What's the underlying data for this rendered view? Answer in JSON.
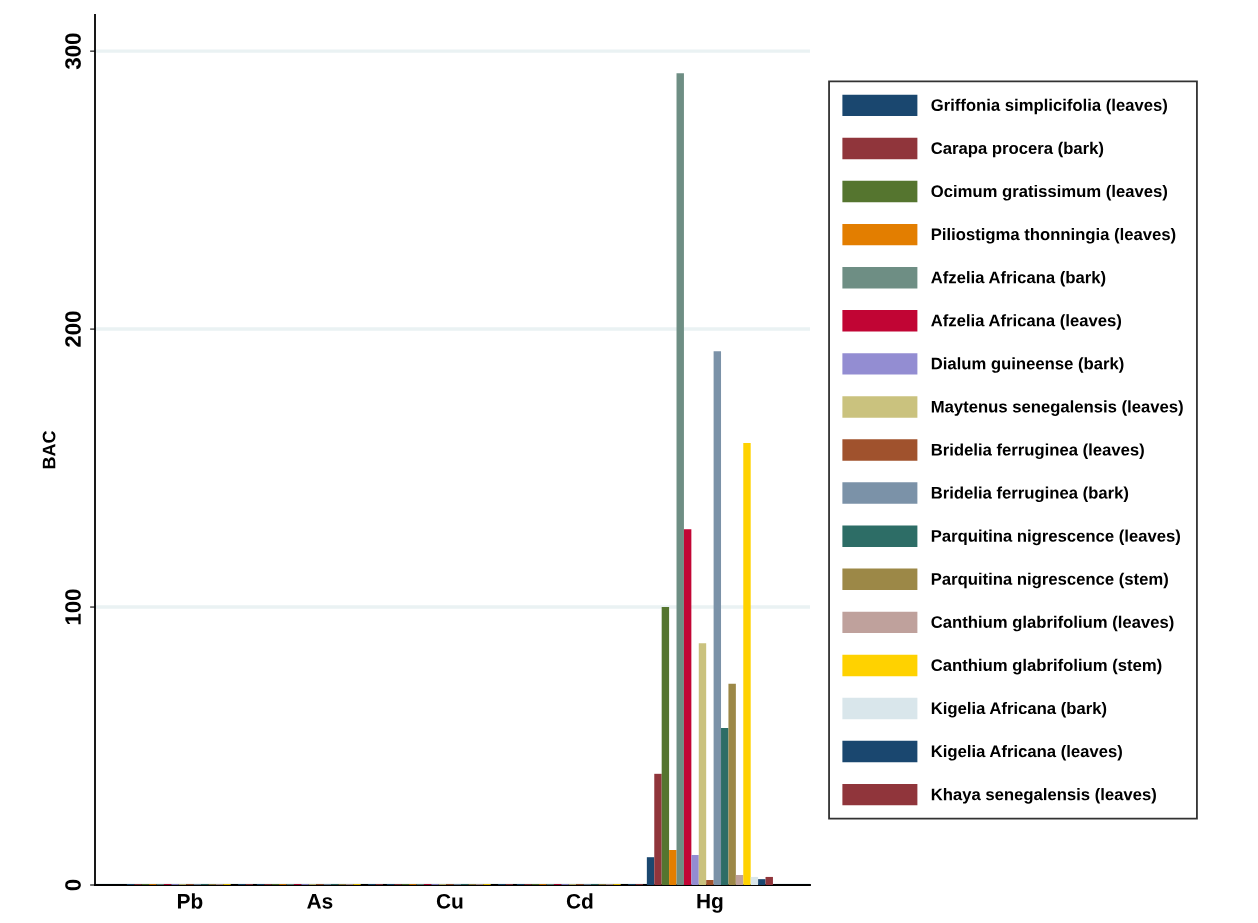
{
  "chart_data": {
    "type": "bar",
    "ylabel": "BAC",
    "categories": [
      "Pb",
      "As",
      "Cu",
      "Cd",
      "Hg"
    ],
    "ylim": [
      0,
      313
    ],
    "yticks": [
      0,
      100,
      200,
      300
    ],
    "grid": "y",
    "legend": "right",
    "series": [
      {
        "name": "Griffonia simplicifolia (leaves)",
        "color": "#1a476f",
        "values": [
          0.3,
          0.3,
          0.3,
          0.3,
          10
        ]
      },
      {
        "name": "Carapa procera (bark)",
        "color": "#90353b",
        "values": [
          0.3,
          0.3,
          0.3,
          0.3,
          40
        ]
      },
      {
        "name": "Ocimum gratissimum (leaves)",
        "color": "#55752f",
        "values": [
          0.3,
          0.3,
          0.3,
          0.3,
          100
        ]
      },
      {
        "name": "Piliostigma thonningia (leaves)",
        "color": "#e37e00",
        "values": [
          0.3,
          0.3,
          0.3,
          0.3,
          12.6
        ]
      },
      {
        "name": "Afzelia Africana (bark)",
        "color": "#6e8e84",
        "values": [
          0.3,
          0.3,
          0.3,
          0.3,
          292
        ]
      },
      {
        "name": "Afzelia Africana (leaves)",
        "color": "#c10534",
        "values": [
          0.3,
          0.3,
          0.3,
          0.3,
          128
        ]
      },
      {
        "name": "Dialum guineense (bark)",
        "color": "#938dd2",
        "values": [
          0.3,
          0.3,
          0.3,
          0.3,
          10.8
        ]
      },
      {
        "name": "Maytenus senegalensis (leaves)",
        "color": "#cac27e",
        "values": [
          0.3,
          0.3,
          0.3,
          0.3,
          87
        ]
      },
      {
        "name": "Bridelia ferruginea (leaves)",
        "color": "#a0522d",
        "values": [
          0.3,
          0.3,
          0.3,
          0.3,
          1.8
        ]
      },
      {
        "name": "Bridelia ferruginea (bark)",
        "color": "#7b92a8",
        "values": [
          0.3,
          0.3,
          0.3,
          0.3,
          192
        ]
      },
      {
        "name": "Parquitina nigrescence (leaves)",
        "color": "#2d6d66",
        "values": [
          0.3,
          0.3,
          0.3,
          0.3,
          56.5
        ]
      },
      {
        "name": "Parquitina nigrescence (stem)",
        "color": "#9c8847",
        "values": [
          0.3,
          0.3,
          0.3,
          0.3,
          72.4
        ]
      },
      {
        "name": "Canthium glabrifolium (leaves)",
        "color": "#bfa19c",
        "values": [
          0.3,
          0.3,
          0.3,
          0.3,
          3.6
        ]
      },
      {
        "name": "Canthium glabrifolium (stem)",
        "color": "#ffd200",
        "values": [
          0.3,
          0.3,
          0.3,
          0.3,
          159
        ]
      },
      {
        "name": "Kigelia Africana (bark)",
        "color": "#d9e6eb",
        "values": [
          null,
          null,
          null,
          null,
          2.9
        ]
      },
      {
        "name": "Kigelia Africana (leaves)",
        "color": "#1a476f",
        "values": [
          0.3,
          0.3,
          0.3,
          0.3,
          2.1
        ]
      },
      {
        "name": "Khaya senegalensis (leaves)",
        "color": "#90353b",
        "values": [
          0.3,
          0.3,
          0.3,
          0.3,
          2.9
        ]
      }
    ]
  }
}
